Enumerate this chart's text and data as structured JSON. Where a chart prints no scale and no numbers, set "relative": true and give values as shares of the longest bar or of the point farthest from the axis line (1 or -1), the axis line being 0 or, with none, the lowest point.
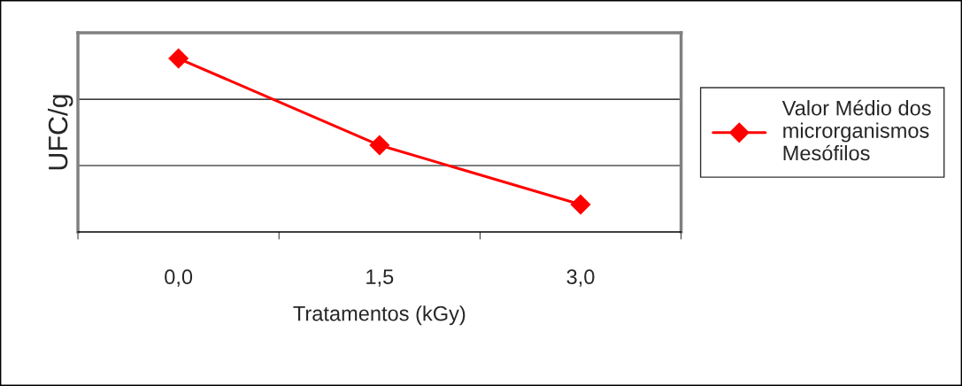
{
  "chart_data": {
    "type": "line",
    "xlabel": "Tratamentos (kGy)",
    "ylabel": "UFC/g",
    "categories": [
      "0,0",
      "1,5",
      "3,0"
    ],
    "relative": true,
    "series": [
      {
        "name": "Valor Médio dos microrganismos Mesófilos",
        "color": "#ff0000",
        "values": [
          1,
          0.5,
          0.158
        ]
      }
    ],
    "ref_lines": [
      {
        "axis": "y",
        "value": 0.383,
        "color": "#000000"
      },
      {
        "axis": "y",
        "value": 0.765,
        "color": "#000000"
      }
    ],
    "marker": "diamond",
    "line_style": "solid",
    "legend": "right"
  }
}
